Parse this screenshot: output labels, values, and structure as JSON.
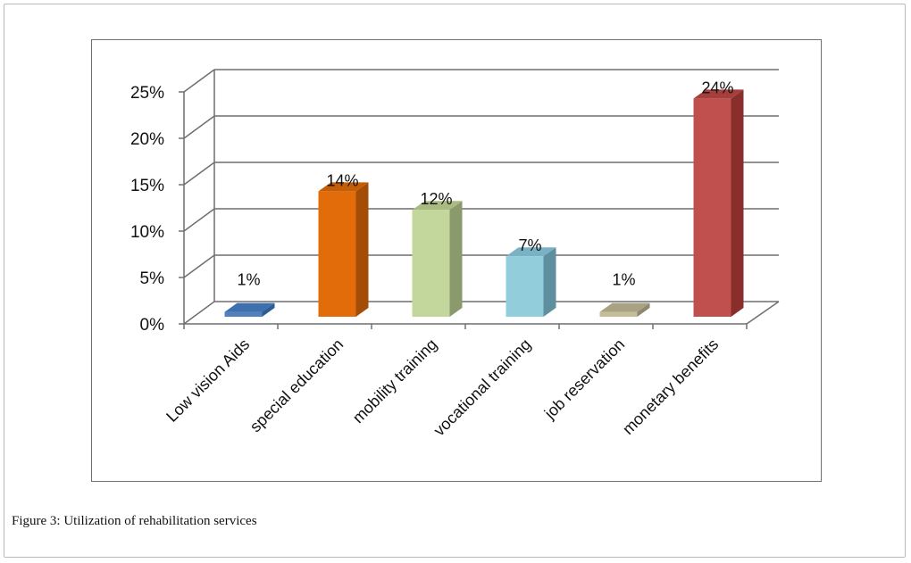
{
  "caption": {
    "label": "Figure 3:",
    "text": "Utilization of rehabilitation services"
  },
  "chart_data": {
    "type": "bar",
    "style": "3d-column",
    "categories": [
      "Low vision Aids",
      "special education",
      "mobility training",
      "vocational training",
      "job reservation",
      "monetary benefits"
    ],
    "values": [
      1,
      14,
      12,
      7,
      1,
      24
    ],
    "data_labels": [
      "1%",
      "14%",
      "12%",
      "7%",
      "1%",
      "24%"
    ],
    "y_ticks": [
      "0%",
      "5%",
      "10%",
      "15%",
      "20%",
      "25%"
    ],
    "ylim": [
      0,
      25
    ],
    "grid": true,
    "legend": "none",
    "colors": {
      "front": [
        "#4f81bd",
        "#e36c0a",
        "#c3d69b",
        "#92cddc",
        "#c4bd97",
        "#c0504d"
      ],
      "side": [
        "#2c5c94",
        "#a34d06",
        "#8a9a6c",
        "#5e8f9e",
        "#8c8770",
        "#8a2e2b"
      ],
      "top": [
        "#3f6fad",
        "#c45d08",
        "#a9bb82",
        "#78b2c4",
        "#a8a283",
        "#a63f3c"
      ],
      "grid": "#6f6f6f",
      "axis": "#6f6f6f"
    }
  }
}
